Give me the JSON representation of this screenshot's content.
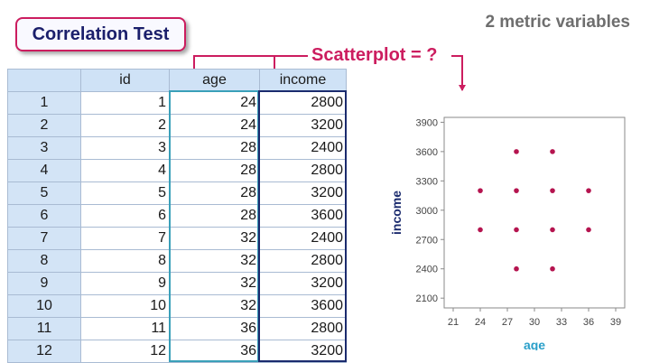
{
  "title": "Correlation Test",
  "subtitle": "2 metric variables",
  "callout": "Scatterplot = ?",
  "table": {
    "columns": [
      "id",
      "age",
      "income"
    ],
    "rows": [
      {
        "rownum": "1",
        "id": "1",
        "age": "24",
        "income": "2800"
      },
      {
        "rownum": "2",
        "id": "2",
        "age": "24",
        "income": "3200"
      },
      {
        "rownum": "3",
        "id": "3",
        "age": "28",
        "income": "2400"
      },
      {
        "rownum": "4",
        "id": "4",
        "age": "28",
        "income": "2800"
      },
      {
        "rownum": "5",
        "id": "5",
        "age": "28",
        "income": "3200"
      },
      {
        "rownum": "6",
        "id": "6",
        "age": "28",
        "income": "3600"
      },
      {
        "rownum": "7",
        "id": "7",
        "age": "32",
        "income": "2400"
      },
      {
        "rownum": "8",
        "id": "8",
        "age": "32",
        "income": "2800"
      },
      {
        "rownum": "9",
        "id": "9",
        "age": "32",
        "income": "3200"
      },
      {
        "rownum": "10",
        "id": "10",
        "age": "32",
        "income": "3600"
      },
      {
        "rownum": "11",
        "id": "11",
        "age": "36",
        "income": "2800"
      },
      {
        "rownum": "12",
        "id": "12",
        "age": "36",
        "income": "3200"
      }
    ]
  },
  "colors": {
    "accent": "#cc1d5f",
    "title_text": "#1b1f6b",
    "age_highlight": "#3aa0b9",
    "income_highlight": "#1b2b6e",
    "grid_header": "#cfe2f6",
    "point": "#b5144f",
    "xlabel": "#2a9fc9",
    "ylabel": "#1b2b6e"
  },
  "chart_data": {
    "type": "scatter",
    "title": "",
    "xlabel": "age",
    "ylabel": "income",
    "xlim": [
      20,
      40
    ],
    "ylim": [
      2000,
      3950
    ],
    "xticks": [
      21,
      24,
      27,
      30,
      33,
      36,
      39
    ],
    "yticks": [
      2100,
      2400,
      2700,
      3000,
      3300,
      3600,
      3900
    ],
    "points": [
      {
        "x": 24,
        "y": 2800
      },
      {
        "x": 24,
        "y": 3200
      },
      {
        "x": 28,
        "y": 2400
      },
      {
        "x": 28,
        "y": 2800
      },
      {
        "x": 28,
        "y": 3200
      },
      {
        "x": 28,
        "y": 3600
      },
      {
        "x": 32,
        "y": 2400
      },
      {
        "x": 32,
        "y": 2800
      },
      {
        "x": 32,
        "y": 3200
      },
      {
        "x": 32,
        "y": 3600
      },
      {
        "x": 36,
        "y": 2800
      },
      {
        "x": 36,
        "y": 3200
      }
    ],
    "grid": false
  }
}
